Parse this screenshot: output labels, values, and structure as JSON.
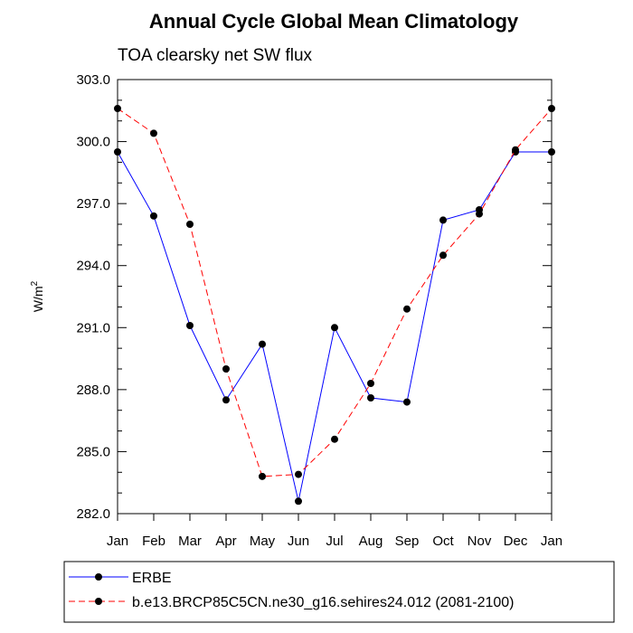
{
  "chart_data": {
    "type": "line",
    "title": "Annual Cycle Global Mean Climatology",
    "subtitle": "TOA clearsky net SW flux",
    "ylabel": "W/m",
    "ylabel_superscript": "2",
    "ylim": [
      282.0,
      303.0
    ],
    "yticks": [
      "282.0",
      "285.0",
      "288.0",
      "291.0",
      "294.0",
      "297.0",
      "300.0",
      "303.0"
    ],
    "ytick_values": [
      282,
      285,
      288,
      291,
      294,
      297,
      300,
      303
    ],
    "categories": [
      "Jan",
      "Feb",
      "Mar",
      "Apr",
      "May",
      "Jun",
      "Jul",
      "Aug",
      "Sep",
      "Oct",
      "Nov",
      "Dec",
      "Jan"
    ],
    "series": [
      {
        "name": "ERBE",
        "color": "#0000ff",
        "dash": "solid",
        "values": [
          299.5,
          296.4,
          291.1,
          287.5,
          290.2,
          282.6,
          291.0,
          287.6,
          287.4,
          296.2,
          296.7,
          299.5,
          299.5
        ]
      },
      {
        "name": "b.e13.BRCP85C5CN.ne30_g16.sehires24.012 (2081-2100)",
        "color": "#ff0000",
        "dash": "dashed",
        "values": [
          301.6,
          300.4,
          296.0,
          289.0,
          283.8,
          283.9,
          285.6,
          288.3,
          291.9,
          294.5,
          296.5,
          299.6,
          301.6
        ]
      }
    ],
    "legend_position": "bottom"
  }
}
